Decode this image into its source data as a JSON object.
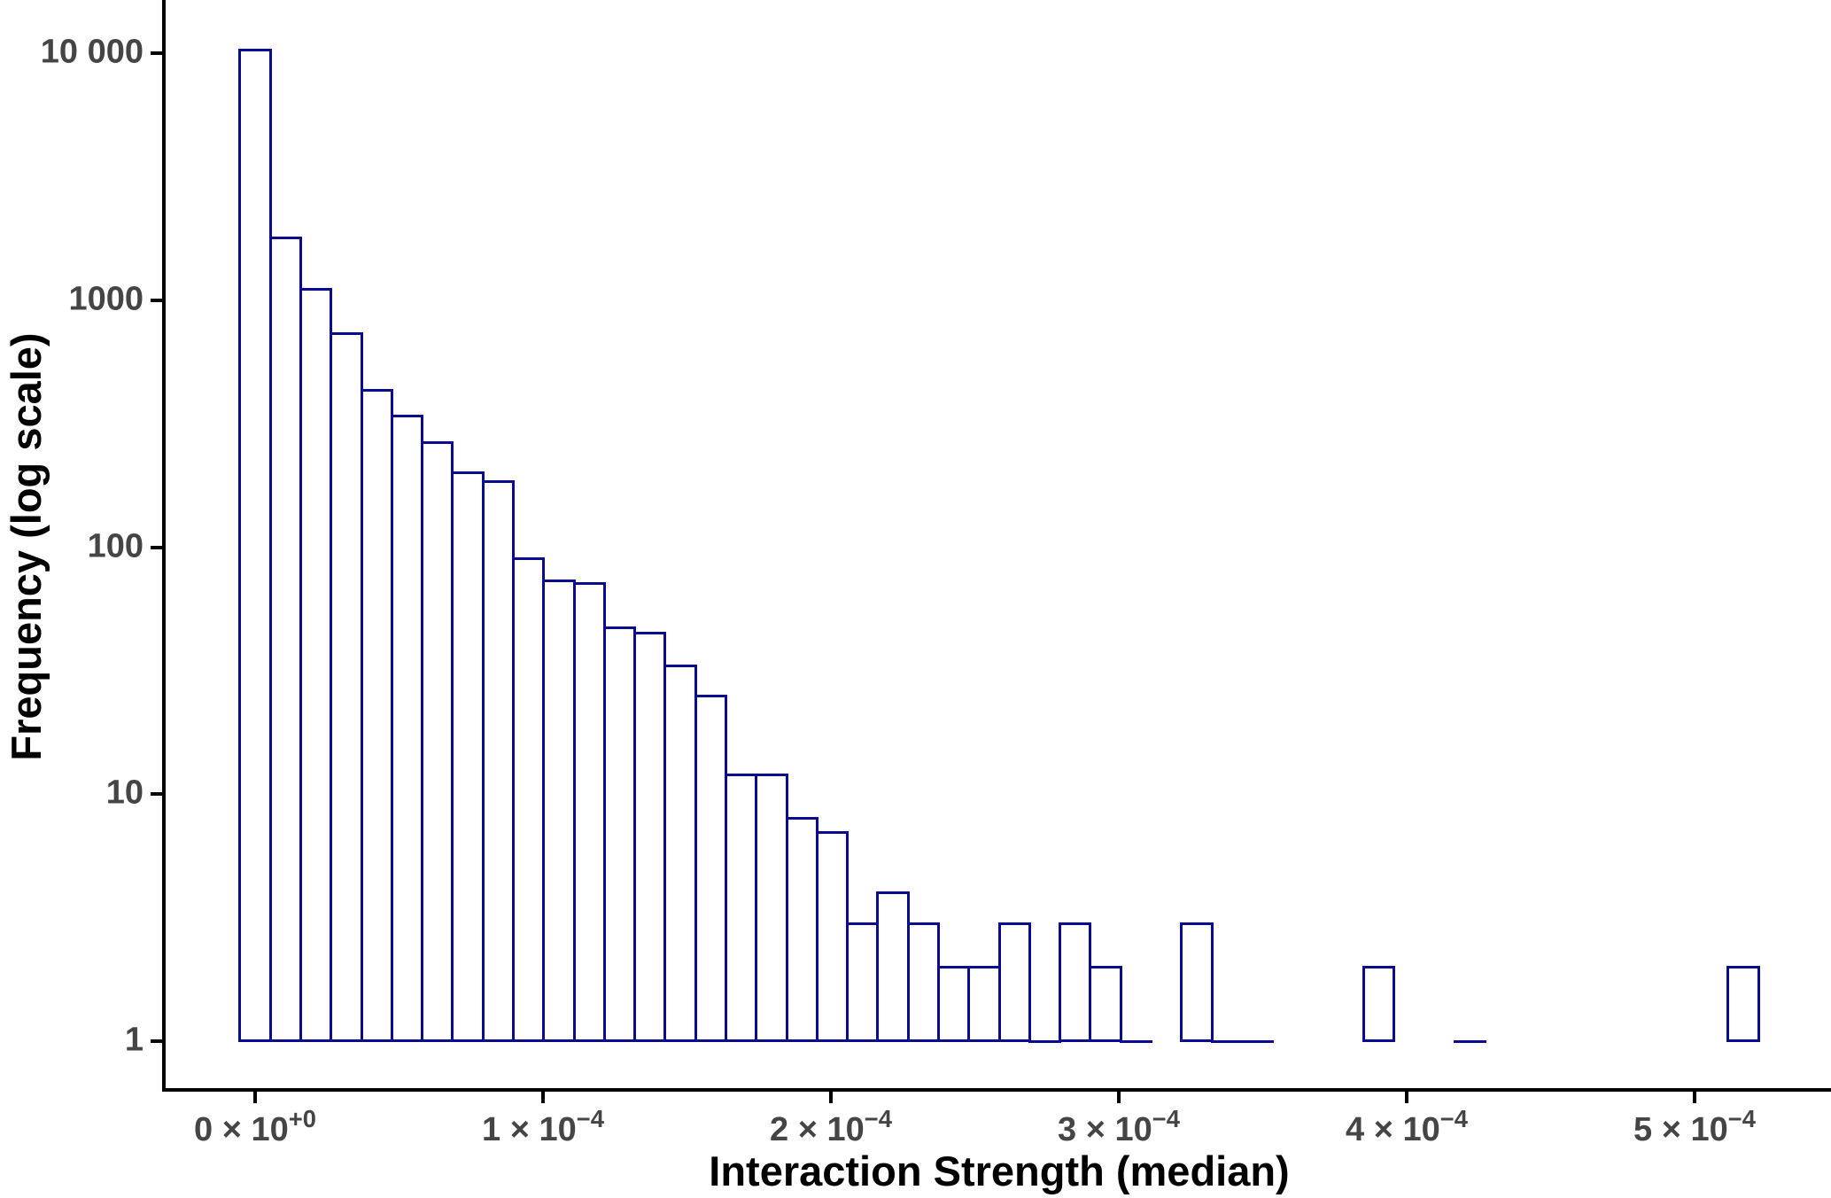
{
  "chart_data": {
    "type": "histogram",
    "title": "",
    "xlabel": "Interaction Strength (median)",
    "ylabel": "Frequency (log scale)",
    "y_scale": "log10",
    "ylim": [
      1,
      16000
    ],
    "xlim": [
      -3e-05,
      0.000547
    ],
    "grid": "off",
    "legend": "none",
    "bin_width": 1.055e-05,
    "first_bin_center": 0,
    "counts": [
      10300,
      1790,
      1110,
      730,
      430,
      340,
      265,
      200,
      185,
      90,
      73,
      71,
      47,
      45,
      33,
      25,
      12,
      12,
      8,
      7,
      3,
      4,
      3,
      2,
      2,
      3,
      1,
      3,
      2,
      1,
      0,
      3,
      1,
      1,
      0,
      0,
      0,
      2,
      0,
      0,
      1,
      0,
      0,
      0,
      0,
      0,
      0,
      0,
      0,
      2
    ],
    "y_ticks": [
      {
        "value": 1,
        "label": "1"
      },
      {
        "value": 10,
        "label": "10"
      },
      {
        "value": 100,
        "label": "100"
      },
      {
        "value": 1000,
        "label": "1000"
      },
      {
        "value": 10000,
        "label": "10 000"
      }
    ],
    "x_ticks": [
      {
        "value": 0.0,
        "base": "0 × 10",
        "sup": "+0"
      },
      {
        "value": 0.0001,
        "base": "1 × 10",
        "sup": "−4"
      },
      {
        "value": 0.0002,
        "base": "2 × 10",
        "sup": "−4"
      },
      {
        "value": 0.0003,
        "base": "3 × 10",
        "sup": "−4"
      },
      {
        "value": 0.0004,
        "base": "4 × 10",
        "sup": "−4"
      },
      {
        "value": 0.0005,
        "base": "5 × 10",
        "sup": "−4"
      }
    ],
    "colors": {
      "bar_stroke": "#0b0b8f",
      "bar_fill": "#ffffff",
      "axis": "#000000",
      "tick_label": "#454545",
      "axis_title": "#000000",
      "background": "#ffffff"
    }
  }
}
